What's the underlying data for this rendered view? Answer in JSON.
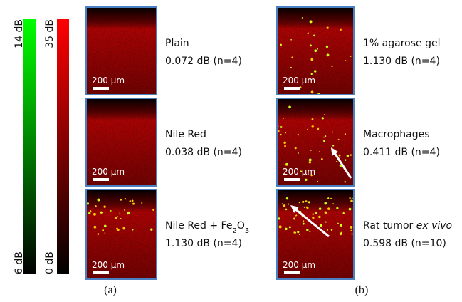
{
  "colorbars": [
    {
      "top": "14 dB",
      "bottom": "6 dB"
    },
    {
      "top": "35 dB",
      "bottom": "0 dB"
    }
  ],
  "panels": [
    {
      "label": "(a)",
      "items": [
        {
          "name": [
            "Plain"
          ],
          "value": "0.072 dB (n=4)",
          "scale": "200 μm"
        },
        {
          "name": [
            "Nile Red"
          ],
          "value": "0.038 dB (n=4)",
          "scale": "200 μm"
        },
        {
          "name": [
            "Nile Red + Fe",
            "2",
            "O",
            "3"
          ],
          "value": "1.130 dB (n=4)",
          "scale": "200 μm"
        }
      ]
    },
    {
      "label": "(b)",
      "items": [
        {
          "name": [
            "1% agarose gel"
          ],
          "value": "1.130 dB (n=4)",
          "scale": "200 μm"
        },
        {
          "name": [
            "Macrophages"
          ],
          "value": "0.411 dB (n=4)",
          "scale": "200 μm"
        },
        {
          "name": [
            "Rat tumor ",
            "ex vivo"
          ],
          "value": "0.598 dB (n=10)",
          "scale": "200 μm"
        }
      ]
    }
  ]
}
